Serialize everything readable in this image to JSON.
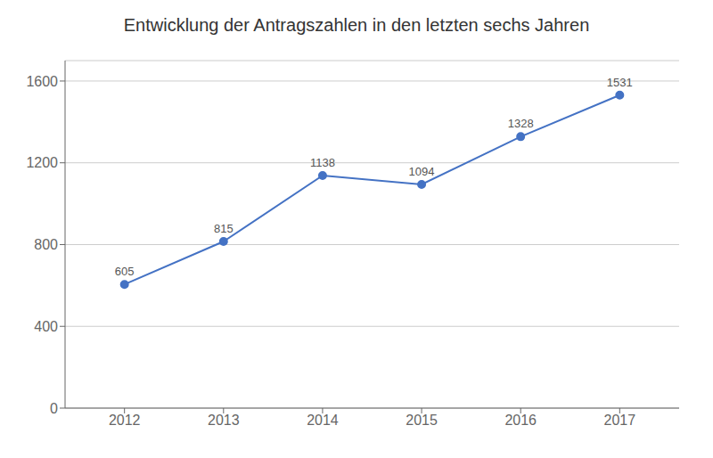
{
  "chart_data": {
    "type": "line",
    "title": "Entwicklung der Antragszahlen in den letzten sechs Jahren",
    "x": [
      2012,
      2013,
      2014,
      2015,
      2016,
      2017
    ],
    "values": [
      605,
      815,
      1138,
      1094,
      1328,
      1531
    ],
    "color": "#4472C4",
    "marker": "circle",
    "xlim": [
      2011.4,
      2017.6
    ],
    "xticks": [
      2012,
      2013,
      2014,
      2015,
      2016,
      2017
    ],
    "ylim": [
      0,
      1700
    ],
    "yticks": [
      0,
      400,
      800,
      1200,
      1600
    ],
    "grid": true,
    "data_labels": true
  }
}
